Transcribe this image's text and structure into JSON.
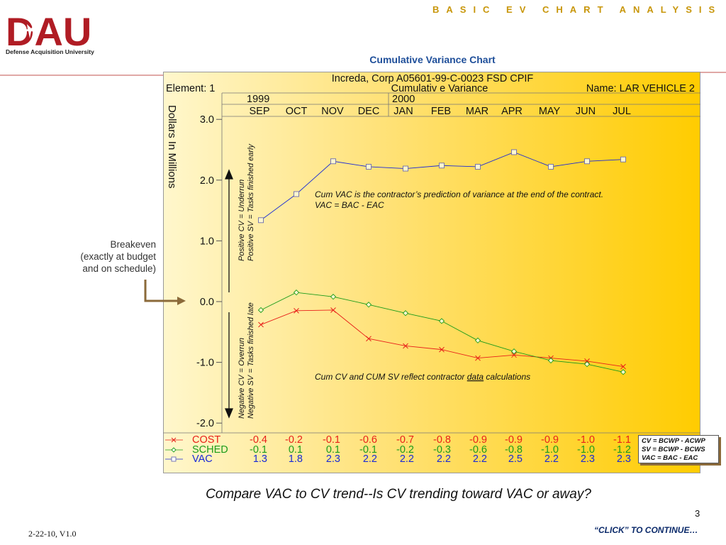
{
  "header": {
    "title": "BASIC EV CHART ANALYSIS"
  },
  "logo": {
    "text": "DAU",
    "subtitle": "Defense Acquisition University"
  },
  "slide_title": "Cumulative Variance Chart",
  "chart_header": {
    "line1": "Increda, Corp A05601-99-C-0023 FSD CPIF",
    "element": "Element: 1",
    "subtitle": "Cumulativ e Variance",
    "name": "Name: LAR VEHICLE 2",
    "year1": "1999",
    "year2": "2000"
  },
  "ylabel": "Dollars In Millions",
  "annotations": {
    "positive": [
      "Positive CV = Underrun",
      "Positive SV = Tasks finished early"
    ],
    "negative": [
      "Negative CV = Overrun",
      "Negative SV = Tasks finished late"
    ],
    "vac_note1": "Cum VAC is the contractor’s prediction of variance at the end of the contract.",
    "vac_note2": "VAC = BAC - EAC",
    "cv_note_a": "Cum CV and CUM SV reflect contractor ",
    "cv_note_b": "data",
    "cv_note_c": " calculations"
  },
  "breakeven": [
    "Breakeven",
    "(exactly at budget",
    "and on schedule)"
  ],
  "legend_box": [
    "CV = BCWP - ACWP",
    "SV = BCWP - BCWS",
    "VAC = BAC - EAC"
  ],
  "question": "Compare VAC to CV trend--Is CV trending toward VAC or away?",
  "page_number": "3",
  "footer_left": "2-22-10, V1.0",
  "footer_right": "“CLICK” TO CONTINUE…",
  "chart_data": {
    "type": "line",
    "title": "Cumulativ e Variance",
    "ylabel": "Dollars In Millions",
    "categories": [
      "SEP",
      "OCT",
      "NOV",
      "DEC",
      "JAN",
      "FEB",
      "MAR",
      "APR",
      "MAY",
      "JUN",
      "JUL"
    ],
    "ylim": [
      -2.0,
      3.0
    ],
    "yticks": [
      "3.0",
      "2.0",
      "1.0",
      "0.0",
      "-1.0",
      "-2.0"
    ],
    "series": [
      {
        "name": "COST",
        "color": "#e8201a",
        "marker": "x",
        "values": [
          -0.4,
          -0.2,
          -0.1,
          -0.6,
          -0.7,
          -0.8,
          -0.9,
          -0.9,
          -0.9,
          -1.0,
          -1.1
        ],
        "plot_values": [
          -0.38,
          -0.15,
          -0.14,
          -0.61,
          -0.73,
          -0.79,
          -0.93,
          -0.88,
          -0.93,
          -0.98,
          -1.07
        ],
        "labels": [
          "-0.4",
          "-0.2",
          "-0.1",
          "-0.6",
          "-0.7",
          "-0.8",
          "-0.9",
          "-0.9",
          "-0.9",
          "-1.0",
          "-1.1"
        ]
      },
      {
        "name": "SCHED",
        "color": "#1a9c1a",
        "marker": "diamond",
        "values": [
          -0.1,
          0.1,
          0.1,
          -0.1,
          -0.2,
          -0.3,
          -0.6,
          -0.8,
          -1.0,
          -1.0,
          -1.2
        ],
        "plot_values": [
          -0.14,
          0.15,
          0.08,
          -0.05,
          -0.19,
          -0.32,
          -0.64,
          -0.82,
          -0.97,
          -1.03,
          -1.16
        ],
        "labels": [
          "-0.1",
          "0.1",
          "0.1",
          "-0.1",
          "-0.2",
          "-0.3",
          "-0.6",
          "-0.8",
          "-1.0",
          "-1.0",
          "-1.2"
        ]
      },
      {
        "name": "VAC",
        "color": "#1a2ad6",
        "marker": "square",
        "values": [
          1.3,
          1.8,
          2.3,
          2.2,
          2.2,
          2.2,
          2.2,
          2.5,
          2.2,
          2.3,
          2.3
        ],
        "plot_values": [
          1.34,
          1.77,
          2.31,
          2.22,
          2.19,
          2.24,
          2.22,
          2.46,
          2.22,
          2.31,
          2.34
        ],
        "labels": [
          "1.3",
          "1.8",
          "2.3",
          "2.2",
          "2.2",
          "2.2",
          "2.2",
          "2.5",
          "2.2",
          "2.3",
          "2.3"
        ]
      }
    ]
  }
}
